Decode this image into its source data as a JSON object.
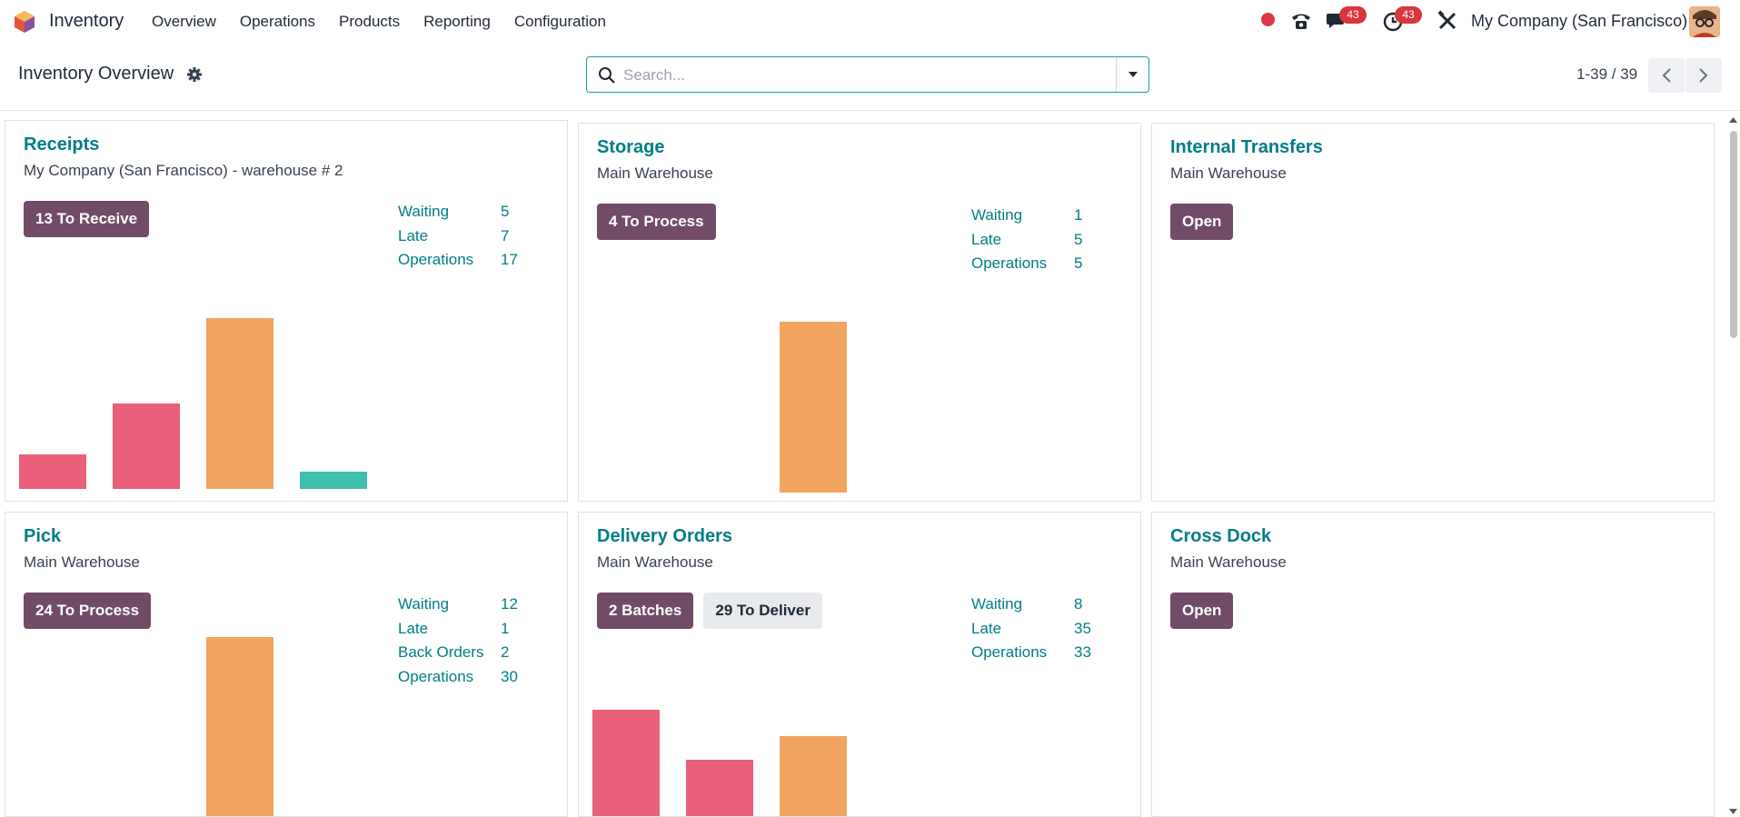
{
  "navbar": {
    "app_name": "Inventory",
    "menu": [
      "Overview",
      "Operations",
      "Products",
      "Reporting",
      "Configuration"
    ],
    "messages_count": "43",
    "activities_count": "43",
    "company": "My Company (San Francisco)"
  },
  "control_panel": {
    "title": "Inventory Overview",
    "search_placeholder": "Search...",
    "pager": "1-39 / 39"
  },
  "colors": {
    "accent": "#017e84",
    "primary_button": "#714b67",
    "bar_red": "#e9607a",
    "bar_orange": "#f2a461",
    "bar_teal": "#3fc0ad"
  },
  "cards": [
    {
      "title": "Receipts",
      "subtitle": "My Company (San Francisco) - warehouse # 2",
      "buttons": [
        {
          "label": "13 To Receive",
          "style": "primary"
        }
      ],
      "stats": [
        [
          "Waiting",
          "5"
        ],
        [
          "Late",
          "7"
        ],
        [
          "Operations",
          "17"
        ]
      ],
      "bars": [
        {
          "value": 0.2,
          "color": "red"
        },
        {
          "value": 0.5,
          "color": "red"
        },
        {
          "value": 1.0,
          "color": "orange"
        },
        {
          "value": 0.1,
          "color": "teal"
        }
      ]
    },
    {
      "title": "Storage",
      "subtitle": "Main Warehouse",
      "buttons": [
        {
          "label": "4 To Process",
          "style": "primary"
        }
      ],
      "stats": [
        [
          "Waiting",
          "1"
        ],
        [
          "Late",
          "5"
        ],
        [
          "Operations",
          "5"
        ]
      ],
      "bars": [
        {
          "value": 0,
          "color": "red"
        },
        {
          "value": 0,
          "color": "red"
        },
        {
          "value": 1.0,
          "color": "orange"
        },
        {
          "value": 0,
          "color": "teal"
        }
      ]
    },
    {
      "title": "Internal Transfers",
      "subtitle": "Main Warehouse",
      "buttons": [
        {
          "label": "Open",
          "style": "primary"
        }
      ],
      "stats": [],
      "bars": []
    },
    {
      "title": "Pick",
      "subtitle": "Main Warehouse",
      "buttons": [
        {
          "label": "24 To Process",
          "style": "primary"
        }
      ],
      "stats": [
        [
          "Waiting",
          "12"
        ],
        [
          "Late",
          "1"
        ],
        [
          "Back Orders",
          "2"
        ],
        [
          "Operations",
          "30"
        ]
      ],
      "bars": [
        {
          "value": 0,
          "color": "red"
        },
        {
          "value": 0,
          "color": "red"
        },
        {
          "value": 1.0,
          "color": "orange"
        },
        {
          "value": 0,
          "color": "teal"
        }
      ]
    },
    {
      "title": "Delivery Orders",
      "subtitle": "Main Warehouse",
      "buttons": [
        {
          "label": "2 Batches",
          "style": "primary"
        },
        {
          "label": "29 To Deliver",
          "style": "secondary"
        }
      ],
      "stats": [
        [
          "Waiting",
          "8"
        ],
        [
          "Late",
          "35"
        ],
        [
          "Operations",
          "33"
        ]
      ],
      "bars": [
        {
          "value": 1.0,
          "color": "red"
        },
        {
          "value": 0.54,
          "color": "red"
        },
        {
          "value": 0.76,
          "color": "orange"
        },
        {
          "value": 0,
          "color": "teal"
        }
      ]
    },
    {
      "title": "Cross Dock",
      "subtitle": "Main Warehouse",
      "buttons": [
        {
          "label": "Open",
          "style": "primary"
        }
      ],
      "stats": [],
      "bars": []
    }
  ]
}
